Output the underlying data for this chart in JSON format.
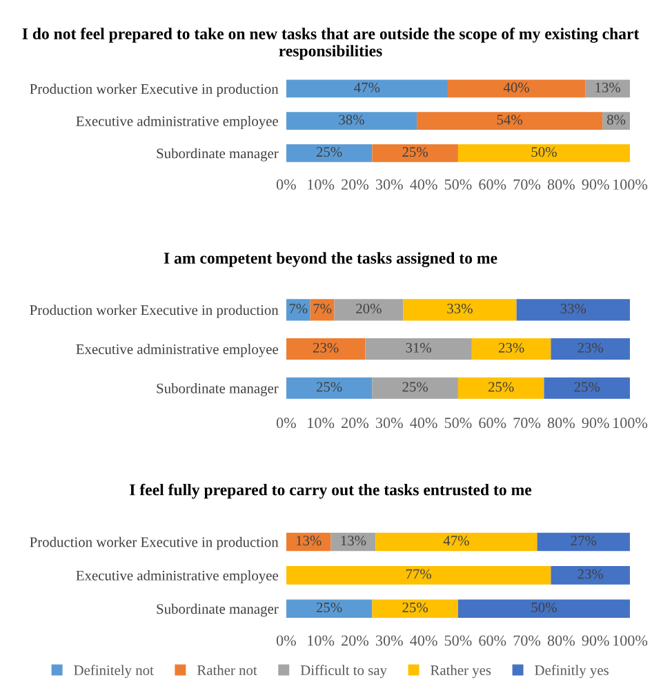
{
  "chart_data": [
    {
      "type": "bar",
      "orientation": "horizontal",
      "stacked": true,
      "title": "I do not feel prepared to take on new tasks that are outside the scope of my existing chart responsibilities",
      "categories": [
        "Production worker Executive in production",
        "Executive administrative employee",
        "Subordinate manager"
      ],
      "series": [
        {
          "color": "#5b9bd5",
          "values": [
            47,
            38,
            25
          ],
          "value_labels": [
            "47%",
            "38%",
            "25%"
          ]
        },
        {
          "color": "#ed7d31",
          "values": [
            40,
            54,
            25
          ],
          "value_labels": [
            "40%",
            "54%",
            "25%"
          ]
        },
        {
          "color": "#a5a5a5",
          "values": [
            13,
            8,
            null
          ],
          "value_labels": [
            "13%",
            "8%",
            null
          ]
        },
        {
          "color": "#ffc000",
          "values": [
            null,
            null,
            50
          ],
          "value_labels": [
            null,
            null,
            "50%"
          ]
        }
      ],
      "xlim": [
        0,
        100
      ],
      "xticks": [
        {
          "value": 0,
          "label": "0%"
        },
        {
          "value": 10,
          "label": "10%"
        },
        {
          "value": 20,
          "label": "20%"
        },
        {
          "value": 30,
          "label": "30%"
        },
        {
          "value": 40,
          "label": "40%"
        },
        {
          "value": 50,
          "label": "50%"
        },
        {
          "value": 60,
          "label": "60%"
        },
        {
          "value": 70,
          "label": "70%"
        },
        {
          "value": 80,
          "label": "80%"
        },
        {
          "value": 90,
          "label": "90%"
        },
        {
          "value": 100,
          "label": "100%"
        }
      ],
      "grid": false,
      "legend": false
    },
    {
      "type": "bar",
      "orientation": "horizontal",
      "stacked": true,
      "title": "I am competent beyond the tasks assigned to me",
      "categories": [
        "Production worker Executive in production",
        "Executive administrative employee",
        "Subordinate manager"
      ],
      "series": [
        {
          "color": "#5b9bd5",
          "values": [
            7,
            null,
            25
          ],
          "value_labels": [
            "7%",
            null,
            "25%"
          ]
        },
        {
          "color": "#ed7d31",
          "values": [
            7,
            23,
            null
          ],
          "value_labels": [
            "7%",
            "23%",
            null
          ]
        },
        {
          "color": "#a5a5a5",
          "values": [
            20,
            31,
            25
          ],
          "value_labels": [
            "20%",
            "31%",
            "25%"
          ]
        },
        {
          "color": "#ffc000",
          "values": [
            33,
            23,
            25
          ],
          "value_labels": [
            "33%",
            "23%",
            "25%"
          ]
        },
        {
          "color": "#4472c4",
          "values": [
            33,
            23,
            25
          ],
          "value_labels": [
            "33%",
            "23%",
            "25%"
          ]
        }
      ],
      "xlim": [
        0,
        100
      ],
      "xticks": [
        {
          "value": 0,
          "label": "0%"
        },
        {
          "value": 10,
          "label": "10%"
        },
        {
          "value": 20,
          "label": "20%"
        },
        {
          "value": 30,
          "label": "30%"
        },
        {
          "value": 40,
          "label": "40%"
        },
        {
          "value": 50,
          "label": "50%"
        },
        {
          "value": 60,
          "label": "60%"
        },
        {
          "value": 70,
          "label": "70%"
        },
        {
          "value": 80,
          "label": "80%"
        },
        {
          "value": 90,
          "label": "90%"
        },
        {
          "value": 100,
          "label": "100%"
        }
      ],
      "grid": false,
      "legend": false
    },
    {
      "type": "bar",
      "orientation": "horizontal",
      "stacked": true,
      "title": "I feel fully prepared to carry out the tasks entrusted to me",
      "categories": [
        "Production worker Executive in production",
        "Executive administrative employee",
        "Subordinate manager"
      ],
      "series": [
        {
          "name": "Definitely not",
          "color": "#5b9bd5",
          "values": [
            null,
            null,
            25
          ],
          "value_labels": [
            null,
            null,
            "25%"
          ]
        },
        {
          "name": "Rather not",
          "color": "#ed7d31",
          "values": [
            13,
            null,
            null
          ],
          "value_labels": [
            "13%",
            null,
            null
          ]
        },
        {
          "name": "Difficult to say",
          "color": "#a5a5a5",
          "values": [
            13,
            null,
            null
          ],
          "value_labels": [
            "13%",
            null,
            null
          ]
        },
        {
          "name": "Rather yes",
          "color": "#ffc000",
          "values": [
            47,
            77,
            25
          ],
          "value_labels": [
            "47%",
            "77%",
            "25%"
          ]
        },
        {
          "name": "Definitly yes",
          "color": "#4472c4",
          "values": [
            27,
            23,
            50
          ],
          "value_labels": [
            "27%",
            "23%",
            "50%"
          ]
        }
      ],
      "xlim": [
        0,
        100
      ],
      "xticks": [
        {
          "value": 0,
          "label": "0%"
        },
        {
          "value": 10,
          "label": "10%"
        },
        {
          "value": 20,
          "label": "20%"
        },
        {
          "value": 30,
          "label": "30%"
        },
        {
          "value": 40,
          "label": "40%"
        },
        {
          "value": 50,
          "label": "50%"
        },
        {
          "value": 60,
          "label": "60%"
        },
        {
          "value": 70,
          "label": "70%"
        },
        {
          "value": 80,
          "label": "80%"
        },
        {
          "value": 90,
          "label": "90%"
        },
        {
          "value": 100,
          "label": "100%"
        }
      ],
      "grid": false,
      "legend": "bottom"
    }
  ]
}
